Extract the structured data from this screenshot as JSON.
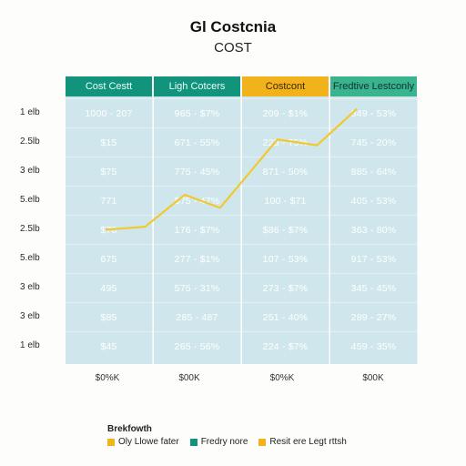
{
  "chart_data": {
    "type": "line",
    "title": "Gl Costcnia",
    "subtitle": "COST",
    "columns": [
      "Cost Cestt",
      "Ligh Cotcers",
      "Costcont",
      "Fredtive Lestconly"
    ],
    "row_labels": [
      "1 elb",
      "2.5lb",
      "3 elb",
      "5.elb",
      "2.5lb",
      "5.elb",
      "3 elb",
      "3 elb",
      "1 elb"
    ],
    "cells": [
      [
        "1000 - 207",
        "965 - $7%",
        "209 - $1%",
        "849 - 53%"
      ],
      [
        "$15",
        "671 - 55%",
        "225 - 75%",
        "745 - 20%"
      ],
      [
        "$75",
        "775 - 45%",
        "871 - 50%",
        "885 - 64%"
      ],
      [
        "771",
        "$75 - 47%",
        "100 - $71",
        "405 - 53%"
      ],
      [
        "$70",
        "176 - $7%",
        "$86 - $7%",
        "363 - 80%"
      ],
      [
        "675",
        "277 - $1%",
        "107 - 53%",
        "917 - 53%"
      ],
      [
        "495",
        "575 - 31%",
        "273 - $7%",
        "345 - 45%"
      ],
      [
        "$85",
        "285 - 487",
        "251 - 40%",
        "289 - 27%"
      ],
      [
        "$45",
        "265 - 56%",
        "224 - $7%",
        "459 - 35%"
      ]
    ],
    "x_ticks": [
      "$0%K",
      "$00K",
      "$0%K",
      "$00K"
    ],
    "series": [
      {
        "x": [
          0.45,
          0.9,
          1.35,
          1.75,
          2.4,
          2.85,
          3.3
        ],
        "y": [
          4.2,
          4.1,
          3.0,
          3.45,
          1.1,
          1.3,
          0.05
        ],
        "color": "#f2c82c"
      }
    ],
    "legend_title": "Brekfowth",
    "legend": [
      {
        "label": "Oly Llowe fater",
        "color": "#f2b21c"
      },
      {
        "label": "Fredry nore",
        "color": "#11937c"
      },
      {
        "label": "Resit ere Legt rttsh",
        "color": "#f2b21c"
      }
    ],
    "grid": true
  }
}
